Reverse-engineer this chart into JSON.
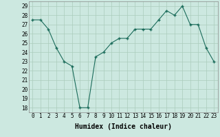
{
  "x": [
    0,
    1,
    2,
    3,
    4,
    5,
    6,
    7,
    8,
    9,
    10,
    11,
    12,
    13,
    14,
    15,
    16,
    17,
    18,
    19,
    20,
    21,
    22,
    23
  ],
  "y": [
    27.5,
    27.5,
    26.5,
    24.5,
    23.0,
    22.5,
    18.0,
    18.0,
    23.5,
    24.0,
    25.0,
    25.5,
    25.5,
    26.5,
    26.5,
    26.5,
    27.5,
    28.5,
    28.0,
    29.0,
    27.0,
    27.0,
    24.5,
    23.0
  ],
  "xlim": [
    -0.5,
    23.5
  ],
  "ylim": [
    17.5,
    29.5
  ],
  "yticks": [
    18,
    19,
    20,
    21,
    22,
    23,
    24,
    25,
    26,
    27,
    28,
    29
  ],
  "xticks": [
    0,
    1,
    2,
    3,
    4,
    5,
    6,
    7,
    8,
    9,
    10,
    11,
    12,
    13,
    14,
    15,
    16,
    17,
    18,
    19,
    20,
    21,
    22,
    23
  ],
  "xlabel": "Humidex (Indice chaleur)",
  "line_color": "#1a6b5a",
  "marker": "+",
  "bg_color": "#cce8e0",
  "grid_color": "#aaccbb",
  "tick_fontsize": 5.5,
  "label_fontsize": 7.0
}
